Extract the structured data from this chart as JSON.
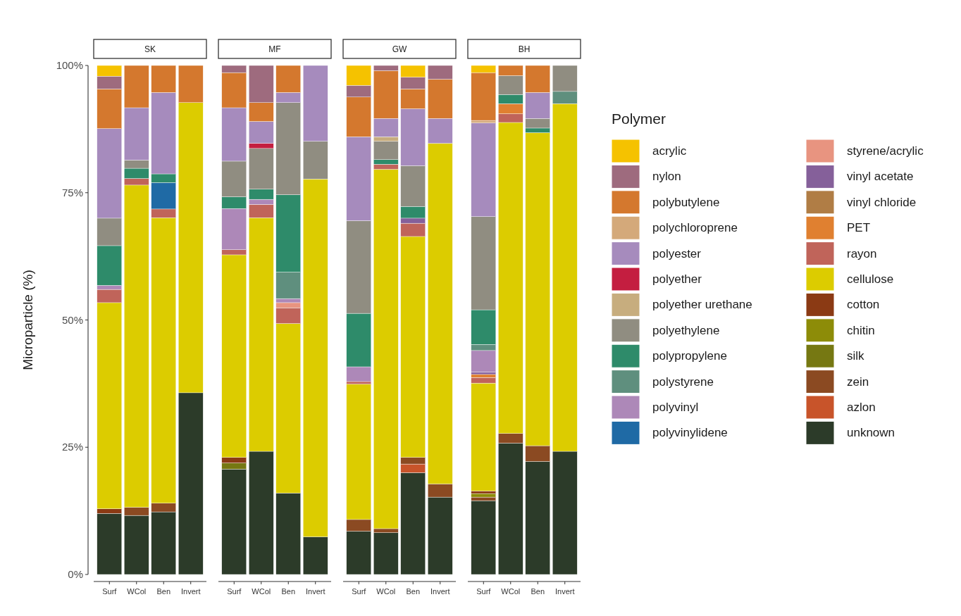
{
  "chart_data": [
    {
      "type": "bar",
      "stacked": true,
      "title": "SK",
      "ylabel": "Microparticle (%)",
      "categories": [
        "Surf",
        "WCol",
        "Ben",
        "Invert"
      ],
      "ylim": [
        0,
        100
      ],
      "yticks": [
        {
          "value": 0,
          "label": "0%"
        },
        {
          "value": 25,
          "label": "25%"
        },
        {
          "value": 50,
          "label": "50%"
        },
        {
          "value": 75,
          "label": "75%"
        },
        {
          "value": 100,
          "label": "100%"
        }
      ],
      "grid": false,
      "legend": false,
      "series": [
        {
          "color": "#2c3b29",
          "values": [
            12,
            11.6,
            12.3,
            35.7
          ]
        },
        {
          "color": "#8b4a22",
          "values": [
            null,
            1.6,
            1.7,
            null
          ]
        },
        {
          "color": "#8b3a14",
          "values": [
            0.9,
            null,
            null,
            null
          ]
        },
        {
          "color": "#dccc00",
          "values": [
            40.5,
            63.3,
            56.1,
            57.0
          ]
        },
        {
          "color": "#c0645a",
          "values": [
            2.6,
            1.3,
            1.7,
            null
          ]
        },
        {
          "color": "#1f6aa5",
          "values": [
            null,
            null,
            5.2,
            null
          ]
        },
        {
          "color": "#ad88b8",
          "values": [
            0.8,
            null,
            null,
            null
          ]
        },
        {
          "color": "#2e8b6a",
          "values": [
            7.8,
            2.0,
            1.7,
            null
          ]
        },
        {
          "color": "#908d81",
          "values": [
            5.4,
            1.6,
            null,
            null
          ]
        },
        {
          "color": "#a68bbd",
          "values": [
            17.6,
            10.3,
            16.0,
            null
          ]
        },
        {
          "color": "#d4782e",
          "values": [
            7.8,
            8.3,
            5.3,
            7.3
          ]
        },
        {
          "color": "#9e6b7e",
          "values": [
            2.5,
            null,
            null,
            null
          ]
        },
        {
          "color": "#f5c200",
          "values": [
            2.1,
            null,
            null,
            null
          ]
        }
      ]
    },
    {
      "type": "bar",
      "stacked": true,
      "title": "MF",
      "categories": [
        "Surf",
        "WCol",
        "Ben",
        "Invert"
      ],
      "ylim": [
        0,
        100
      ],
      "tick_labels": "x",
      "grid": false,
      "legend": false,
      "series": [
        {
          "color": "#2c3b29",
          "values": [
            20.7,
            24.2,
            16.0,
            7.4
          ]
        },
        {
          "color": "#767812",
          "values": [
            1.2,
            null,
            null,
            null
          ]
        },
        {
          "color": "#8b3a14",
          "values": [
            1.1,
            null,
            null,
            null
          ]
        },
        {
          "color": "#dccc00",
          "values": [
            39.8,
            45.9,
            33.3,
            70.3
          ]
        },
        {
          "color": "#c0645a",
          "values": [
            1.0,
            2.6,
            3.1,
            null
          ]
        },
        {
          "color": "#e89480",
          "values": [
            null,
            null,
            1.0,
            null
          ]
        },
        {
          "color": "#ad88b8",
          "values": [
            8.1,
            1.0,
            0.8,
            null
          ]
        },
        {
          "color": "#5f8f7e",
          "values": [
            null,
            null,
            5.2,
            null
          ]
        },
        {
          "color": "#2e8b6a",
          "values": [
            2.3,
            2.0,
            15.2,
            null
          ]
        },
        {
          "color": "#908d81",
          "values": [
            7.0,
            8.0,
            18.1,
            7.4
          ]
        },
        {
          "color": "#c41e40",
          "values": [
            null,
            1.0,
            null,
            null
          ]
        },
        {
          "color": "#a68bbd",
          "values": [
            10.5,
            4.3,
            2.0,
            14.9
          ]
        },
        {
          "color": "#d4782e",
          "values": [
            6.9,
            3.7,
            5.3,
            null
          ]
        },
        {
          "color": "#9e6b7e",
          "values": [
            1.4,
            7.3,
            null,
            null
          ]
        }
      ]
    },
    {
      "type": "bar",
      "stacked": true,
      "title": "GW",
      "categories": [
        "Surf",
        "WCol",
        "Ben",
        "Invert"
      ],
      "ylim": [
        0,
        100
      ],
      "tick_labels": "x",
      "grid": false,
      "legend": false,
      "series": [
        {
          "color": "#2c3b29",
          "values": [
            8.5,
            8.2,
            20.0,
            15.2
          ]
        },
        {
          "color": "#c8542a",
          "values": [
            null,
            null,
            1.7,
            null
          ]
        },
        {
          "color": "#8b4a22",
          "values": [
            2.3,
            0.8,
            1.3,
            2.6
          ]
        },
        {
          "color": "#dccc00",
          "values": [
            26.6,
            70.6,
            43.4,
            66.9
          ]
        },
        {
          "color": "#c0645a",
          "values": [
            0.5,
            1.0,
            2.6,
            null
          ]
        },
        {
          "color": "#85609a",
          "values": [
            null,
            null,
            1.0,
            null
          ]
        },
        {
          "color": "#ad88b8",
          "values": [
            2.9,
            null,
            null,
            null
          ]
        },
        {
          "color": "#2e8b6a",
          "values": [
            10.5,
            0.9,
            2.3,
            null
          ]
        },
        {
          "color": "#908d81",
          "values": [
            18.2,
            3.6,
            8.0,
            null
          ]
        },
        {
          "color": "#c7ad7e",
          "values": [
            null,
            0.9,
            null,
            null
          ]
        },
        {
          "color": "#a68bbd",
          "values": [
            16.5,
            3.6,
            11.2,
            4.9
          ]
        },
        {
          "color": "#d4782e",
          "values": [
            7.8,
            9.4,
            3.9,
            7.7
          ]
        },
        {
          "color": "#9e6b7e",
          "values": [
            2.3,
            1.0,
            2.3,
            2.7
          ]
        },
        {
          "color": "#f5c200",
          "values": [
            3.9,
            null,
            2.3,
            null
          ]
        }
      ]
    },
    {
      "type": "bar",
      "stacked": true,
      "title": "BH",
      "categories": [
        "Surf",
        "WCol",
        "Ben",
        "Invert"
      ],
      "ylim": [
        0,
        100
      ],
      "tick_labels": "x",
      "grid": false,
      "legend": "right",
      "legend_title": "Polymer",
      "series": [
        {
          "name": "unknown",
          "color": "#2c3b29",
          "values": [
            14.5,
            25.8,
            22.2,
            24.2
          ]
        },
        {
          "name": "azlon",
          "color": "#c8542a",
          "values": [
            null,
            null,
            null,
            null
          ]
        },
        {
          "name": "zein",
          "color": "#8b4a22",
          "values": [
            0.7,
            1.9,
            3.1,
            null
          ]
        },
        {
          "name": "silk",
          "color": "#767812",
          "values": [
            null,
            null,
            null,
            null
          ]
        },
        {
          "name": "chitin",
          "color": "#8d8c08",
          "values": [
            0.7,
            null,
            null,
            null
          ]
        },
        {
          "name": "cotton",
          "color": "#8b3a14",
          "values": [
            0.5,
            null,
            null,
            null
          ]
        },
        {
          "name": "cellulose",
          "color": "#dccc00",
          "values": [
            21.2,
            61.1,
            61.5,
            68.3
          ]
        },
        {
          "name": "rayon",
          "color": "#c0645a",
          "values": [
            1.1,
            1.7,
            null,
            null
          ]
        },
        {
          "name": "PET",
          "color": "#e08030",
          "values": [
            0.6,
            2.0,
            null,
            null
          ]
        },
        {
          "name": "vinyl chloride",
          "color": "#b07d45",
          "values": [
            null,
            null,
            null,
            null
          ]
        },
        {
          "name": "vinyl acetate",
          "color": "#85609a",
          "values": [
            0.5,
            null,
            null,
            null
          ]
        },
        {
          "name": "styrene/acrylic",
          "color": "#e89480",
          "values": [
            null,
            null,
            null,
            null
          ]
        },
        {
          "name": "polyvinylidene",
          "color": "#1f6aa5",
          "values": [
            null,
            null,
            null,
            null
          ]
        },
        {
          "name": "polyvinyl",
          "color": "#ad88b8",
          "values": [
            4.2,
            null,
            null,
            null
          ]
        },
        {
          "name": "polystyrene",
          "color": "#5f8f7e",
          "values": [
            1.2,
            null,
            null,
            2.4
          ]
        },
        {
          "name": "polypropylene",
          "color": "#2e8b6a",
          "values": [
            6.8,
            1.8,
            0.9,
            null
          ]
        },
        {
          "name": "polyethylene",
          "color": "#908d81",
          "values": [
            18.3,
            3.7,
            1.9,
            5.1
          ]
        },
        {
          "name": "polyether urethane",
          "color": "#c7ad7e",
          "values": [
            null,
            null,
            null,
            null
          ]
        },
        {
          "name": "polyether",
          "color": "#c41e40",
          "values": [
            null,
            null,
            null,
            null
          ]
        },
        {
          "name": "polyester",
          "color": "#a68bbd",
          "values": [
            18.4,
            null,
            5.1,
            null
          ]
        },
        {
          "name": "polychloroprene",
          "color": "#d4a97a",
          "values": [
            0.5,
            null,
            null,
            null
          ]
        },
        {
          "name": "polybutylene",
          "color": "#d4782e",
          "values": [
            9.4,
            2.0,
            5.3,
            null
          ]
        },
        {
          "name": "nylon",
          "color": "#9e6b7e",
          "values": [
            null,
            null,
            null,
            null
          ]
        },
        {
          "name": "acrylic",
          "color": "#f5c200",
          "values": [
            1.4,
            null,
            null,
            null
          ]
        }
      ]
    }
  ]
}
